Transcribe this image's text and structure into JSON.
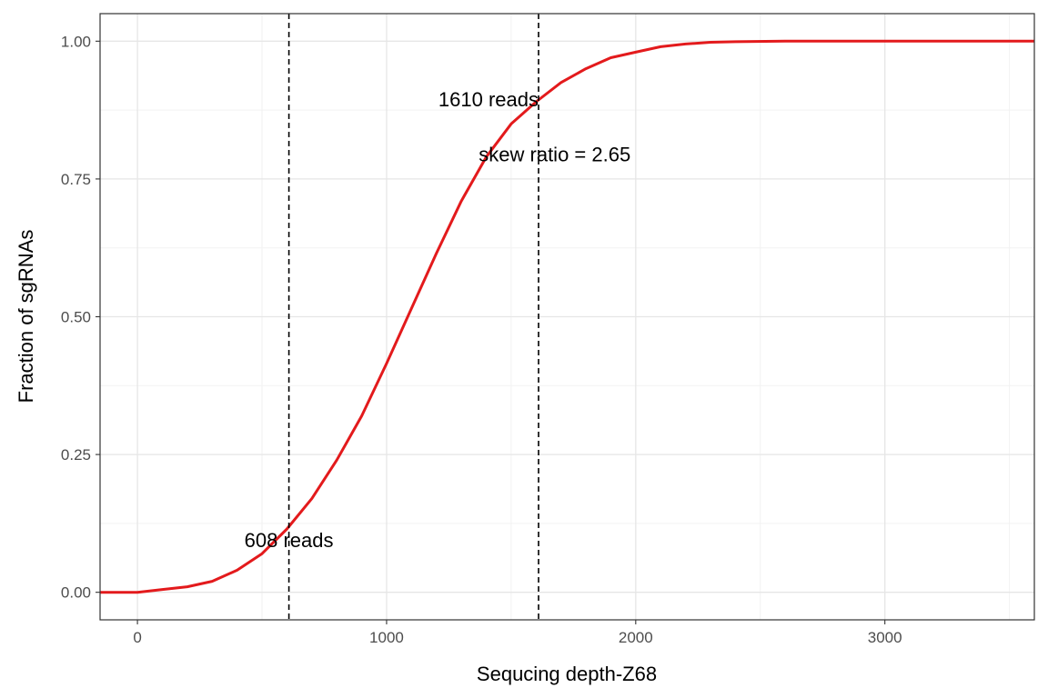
{
  "chart_data": {
    "type": "line",
    "xlabel": "Sequcing depth-Z68",
    "ylabel": "Fraction of sgRNAs",
    "xlim": [
      -150,
      3600
    ],
    "ylim": [
      -0.05,
      1.05
    ],
    "x_ticks": [
      0,
      1000,
      2000,
      3000
    ],
    "x_tick_labels": [
      "0",
      "1000",
      "2000",
      "3000"
    ],
    "y_ticks": [
      0,
      0.25,
      0.5,
      0.75,
      1.0
    ],
    "y_tick_labels": [
      "0.00",
      "0.25",
      "0.50",
      "0.75",
      "1.00"
    ],
    "grid": true,
    "series": [
      {
        "color": "#e31a1c",
        "x": [
          -150,
          0,
          100,
          200,
          300,
          400,
          500,
          600,
          700,
          800,
          900,
          1000,
          1100,
          1200,
          1300,
          1400,
          1500,
          1600,
          1700,
          1800,
          1900,
          2000,
          2100,
          2200,
          2300,
          2400,
          2600,
          2800,
          3000,
          3200,
          3400,
          3600
        ],
        "y": [
          0.0,
          0.0,
          0.005,
          0.01,
          0.02,
          0.04,
          0.07,
          0.115,
          0.17,
          0.24,
          0.32,
          0.415,
          0.515,
          0.615,
          0.71,
          0.79,
          0.85,
          0.89,
          0.925,
          0.95,
          0.97,
          0.98,
          0.99,
          0.995,
          0.998,
          0.999,
          1.0,
          1.0,
          1.0,
          1.0,
          1.0,
          1.0
        ]
      }
    ],
    "vlines": [
      {
        "x": 608,
        "style": "dashed"
      },
      {
        "x": 1610,
        "style": "dashed"
      }
    ],
    "annotations": [
      {
        "text": "608 reads",
        "x": 608,
        "y": 0.095,
        "anchor": "middle"
      },
      {
        "text": "1610 reads",
        "x": 1610,
        "y": 0.895,
        "anchor": "end"
      },
      {
        "text": "skew ratio = 2.65",
        "x": 1370,
        "y": 0.795,
        "anchor": "start"
      }
    ]
  }
}
